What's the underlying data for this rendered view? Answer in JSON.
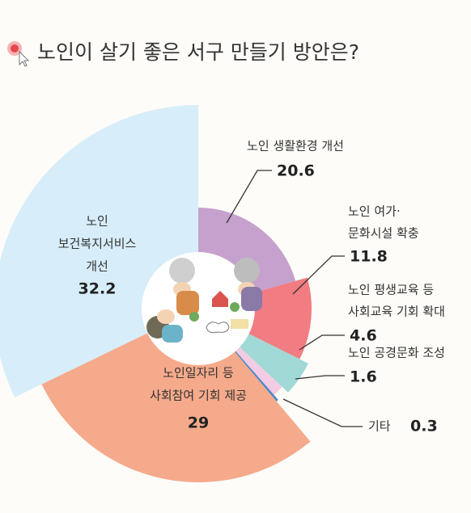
{
  "chart_data": {
    "type": "donut",
    "title": "노인이 살기 좋은 서구 만들기 방안은?",
    "categories": [
      [
        "노인 생활환경 개선"
      ],
      [
        "노인 여가·",
        "문화시설 확충"
      ],
      [
        "노인 평생교육 등",
        "사회교육 기회 확대"
      ],
      [
        "노인 공경문화 조성"
      ],
      [
        "기타"
      ],
      [
        "노인일자리 등",
        "사회참여 기회 제공"
      ],
      [
        "노인",
        "보건복지서비스",
        "개선"
      ]
    ],
    "values": [
      20.6,
      11.8,
      4.6,
      1.6,
      0.3,
      29,
      32.2
    ],
    "colors": [
      "#c6a1cd",
      "#f17c82",
      "#a0d9d6",
      "#f3cbe2",
      "#4a86c6",
      "#f5aa8b",
      "#d7edfa"
    ]
  }
}
